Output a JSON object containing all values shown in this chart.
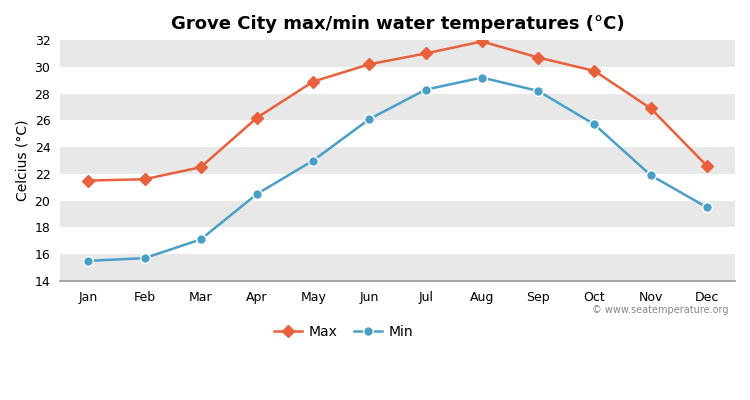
{
  "months": [
    "Jan",
    "Feb",
    "Mar",
    "Apr",
    "May",
    "Jun",
    "Jul",
    "Aug",
    "Sep",
    "Oct",
    "Nov",
    "Dec"
  ],
  "max_temps": [
    21.5,
    21.6,
    22.5,
    26.2,
    28.9,
    30.2,
    31.0,
    31.9,
    30.7,
    29.7,
    26.9,
    22.6
  ],
  "min_temps": [
    15.5,
    15.7,
    17.1,
    20.5,
    23.0,
    26.1,
    28.3,
    29.2,
    28.2,
    25.7,
    21.9,
    19.5
  ],
  "max_color": "#e8603c",
  "min_color": "#4a9fc8",
  "figure_bg": "#ffffff",
  "plot_bg": "#ffffff",
  "band_color": "#e8e8e8",
  "title": "Grove City max/min water temperatures (°C)",
  "ylabel": "Celcius (°C)",
  "ylim": [
    14,
    32
  ],
  "yticks": [
    14,
    16,
    18,
    20,
    22,
    24,
    26,
    28,
    30,
    32
  ],
  "title_fontsize": 13,
  "axis_fontsize": 10,
  "tick_fontsize": 9,
  "legend_labels": [
    "Max",
    "Min"
  ],
  "watermark": "© www.seatemperature.org",
  "max_marker": "D",
  "min_marker": "o",
  "linewidth": 1.8,
  "max_markersize": 6,
  "min_markersize": 7
}
